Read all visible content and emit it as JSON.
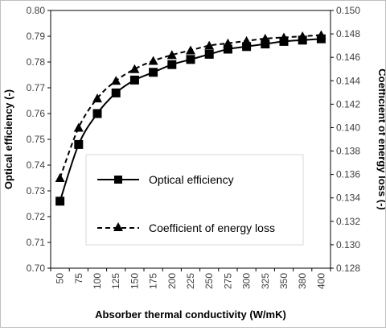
{
  "chart_data": {
    "type": "line",
    "xlabel": "Absorber thermal conductivity (W/mK)",
    "ylabel_left": "Optical efficiency (-)",
    "ylabel_right": "Coefficient of energy loss (-)",
    "categories": [
      "50",
      "75",
      "100",
      "125",
      "150",
      "175",
      "200",
      "225",
      "250",
      "275",
      "300",
      "325",
      "350",
      "380",
      "400"
    ],
    "ylim_left": [
      0.7,
      0.8
    ],
    "yticks_left": [
      "0.70",
      "0.71",
      "0.72",
      "0.73",
      "0.74",
      "0.75",
      "0.76",
      "0.77",
      "0.78",
      "0.79",
      "0.80"
    ],
    "ylim_right": [
      0.128,
      0.15
    ],
    "yticks_right": [
      "0.128",
      "0.130",
      "0.132",
      "0.134",
      "0.136",
      "0.138",
      "0.140",
      "0.142",
      "0.144",
      "0.146",
      "0.148",
      "0.150"
    ],
    "grid": false,
    "legend_position": "center-right",
    "series": [
      {
        "name": "Optical efficiency",
        "axis": "left",
        "marker": "square",
        "line_style": "solid",
        "color": "#000000",
        "values": [
          0.726,
          0.748,
          0.76,
          0.768,
          0.773,
          0.776,
          0.779,
          0.781,
          0.783,
          0.785,
          0.786,
          0.787,
          0.788,
          0.7885,
          0.789
        ]
      },
      {
        "name": "Coefficient of energy loss",
        "axis": "right",
        "marker": "triangle",
        "line_style": "dashed",
        "color": "#000000",
        "values": [
          0.1357,
          0.14,
          0.1425,
          0.144,
          0.145,
          0.1457,
          0.1462,
          0.1466,
          0.147,
          0.1472,
          0.1474,
          0.1476,
          0.1477,
          0.1478,
          0.1479
        ]
      }
    ]
  }
}
